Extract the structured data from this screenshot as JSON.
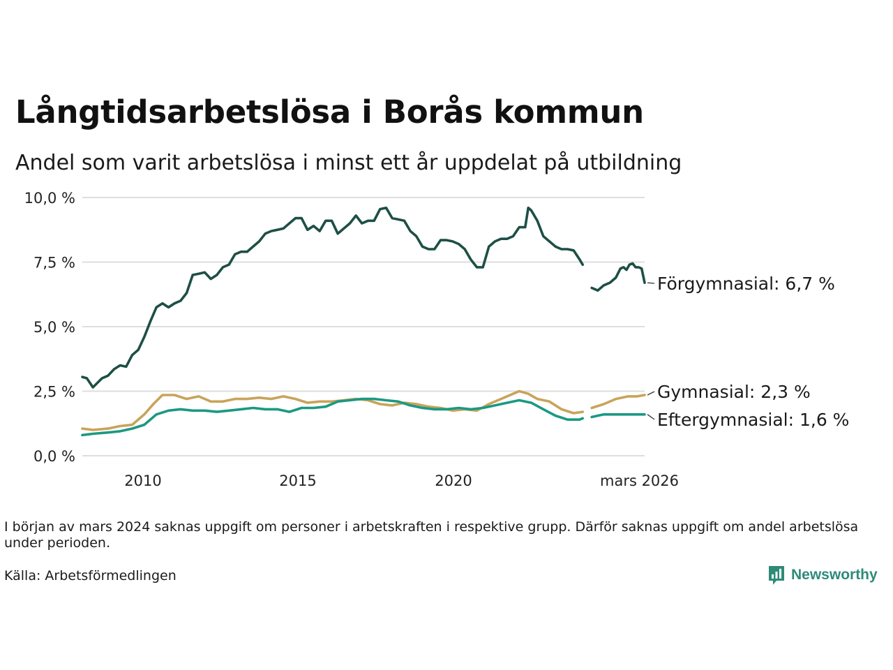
{
  "title": "Långtidsarbetslösa i Borås kommun",
  "subtitle": "Andel som varit arbetslösa i minst ett år uppdelat på utbildning",
  "note": "I början av mars 2024 saknas uppgift om personer i arbetskraften i respektive grupp. Därför saknas uppgift om andel arbetslösa under perioden.",
  "source": "Källa: Arbetsförmedlingen",
  "brand": "Newsworthy",
  "chart_data": {
    "type": "line",
    "title": "Långtidsarbetslösa i Borås kommun",
    "subtitle": "Andel som varit arbetslösa i minst ett år uppdelat på utbildning",
    "ylim": [
      0,
      10
    ],
    "xlim": [
      2008.15,
      2026.17
    ],
    "grid": true,
    "y_ticks": [
      {
        "value": 0,
        "label": "0,0 %"
      },
      {
        "value": 2.5,
        "label": "2,5 %"
      },
      {
        "value": 5,
        "label": "5,0 %"
      },
      {
        "value": 7.5,
        "label": "7,5 %"
      },
      {
        "value": 10,
        "label": "10,0 %"
      }
    ],
    "x_ticks": [
      {
        "value": 2010,
        "label": "2010"
      },
      {
        "value": 2015,
        "label": "2015"
      },
      {
        "value": 2020,
        "label": "2020"
      },
      {
        "value": 2026.17,
        "label": "mars 2026"
      }
    ],
    "series": [
      {
        "name": "Förgymnasial",
        "label": "Förgymnasial: 6,7 %",
        "last_value": 6.7,
        "color": "#1d4f45",
        "segments": [
          [
            [
              2008.15,
              3.05
            ],
            [
              2008.3,
              3.0
            ],
            [
              2008.5,
              2.65
            ],
            [
              2008.8,
              3.0
            ],
            [
              2009.0,
              3.1
            ],
            [
              2009.2,
              3.35
            ],
            [
              2009.4,
              3.5
            ],
            [
              2009.6,
              3.45
            ],
            [
              2009.8,
              3.9
            ],
            [
              2010.0,
              4.1
            ],
            [
              2010.2,
              4.6
            ],
            [
              2010.4,
              5.2
            ],
            [
              2010.6,
              5.75
            ],
            [
              2010.8,
              5.9
            ],
            [
              2011.0,
              5.75
            ],
            [
              2011.2,
              5.9
            ],
            [
              2011.4,
              6.0
            ],
            [
              2011.6,
              6.3
            ],
            [
              2011.8,
              7.0
            ],
            [
              2012.0,
              7.05
            ],
            [
              2012.2,
              7.1
            ],
            [
              2012.4,
              6.85
            ],
            [
              2012.6,
              7.0
            ],
            [
              2012.8,
              7.3
            ],
            [
              2013.0,
              7.4
            ],
            [
              2013.2,
              7.8
            ],
            [
              2013.4,
              7.9
            ],
            [
              2013.6,
              7.9
            ],
            [
              2013.8,
              8.1
            ],
            [
              2014.0,
              8.3
            ],
            [
              2014.2,
              8.6
            ],
            [
              2014.4,
              8.7
            ],
            [
              2014.6,
              8.75
            ],
            [
              2014.8,
              8.8
            ],
            [
              2015.0,
              9.0
            ],
            [
              2015.2,
              9.2
            ],
            [
              2015.4,
              9.2
            ],
            [
              2015.6,
              8.75
            ],
            [
              2015.8,
              8.9
            ],
            [
              2016.0,
              8.7
            ],
            [
              2016.2,
              9.1
            ],
            [
              2016.4,
              9.1
            ],
            [
              2016.6,
              8.6
            ],
            [
              2016.8,
              8.8
            ],
            [
              2017.0,
              9.0
            ],
            [
              2017.2,
              9.3
            ],
            [
              2017.4,
              9.0
            ],
            [
              2017.6,
              9.1
            ],
            [
              2017.8,
              9.1
            ],
            [
              2018.0,
              9.55
            ],
            [
              2018.2,
              9.6
            ],
            [
              2018.4,
              9.2
            ],
            [
              2018.6,
              9.15
            ],
            [
              2018.8,
              9.1
            ],
            [
              2019.0,
              8.7
            ],
            [
              2019.2,
              8.5
            ],
            [
              2019.4,
              8.1
            ],
            [
              2019.6,
              8.0
            ],
            [
              2019.8,
              8.0
            ],
            [
              2020.0,
              8.35
            ],
            [
              2020.2,
              8.35
            ],
            [
              2020.4,
              8.3
            ],
            [
              2020.6,
              8.2
            ],
            [
              2020.8,
              8.0
            ],
            [
              2021.0,
              7.6
            ],
            [
              2021.2,
              7.3
            ],
            [
              2021.4,
              7.3
            ],
            [
              2021.6,
              8.1
            ],
            [
              2021.8,
              8.3
            ],
            [
              2022.0,
              8.4
            ],
            [
              2022.2,
              8.4
            ],
            [
              2022.4,
              8.5
            ],
            [
              2022.6,
              8.85
            ],
            [
              2022.8,
              8.85
            ],
            [
              2022.9,
              9.6
            ],
            [
              2023.0,
              9.5
            ],
            [
              2023.2,
              9.1
            ],
            [
              2023.4,
              8.5
            ],
            [
              2023.6,
              8.3
            ],
            [
              2023.8,
              8.1
            ],
            [
              2024.0,
              8.0
            ],
            [
              2024.2,
              8.0
            ],
            [
              2024.4,
              7.95
            ],
            [
              2024.6,
              7.6
            ],
            [
              2024.7,
              7.4
            ]
          ],
          [
            [
              2025.0,
              6.5
            ],
            [
              2025.2,
              6.4
            ],
            [
              2025.4,
              6.6
            ],
            [
              2025.6,
              6.7
            ],
            [
              2025.8,
              6.9
            ],
            [
              2025.95,
              7.25
            ],
            [
              2026.05,
              7.3
            ],
            [
              2026.15,
              7.2
            ],
            [
              2026.25,
              7.4
            ],
            [
              2026.35,
              7.45
            ],
            [
              2026.45,
              7.3
            ],
            [
              2026.55,
              7.3
            ],
            [
              2026.65,
              7.25
            ],
            [
              2026.75,
              6.7
            ]
          ]
        ]
      },
      {
        "name": "Gymnasial",
        "label": "Gymnasial: 2,3 %",
        "last_value": 2.3,
        "color": "#c9a35a",
        "segments": [
          [
            [
              2008.15,
              1.05
            ],
            [
              2008.5,
              1.0
            ],
            [
              2009.0,
              1.05
            ],
            [
              2009.4,
              1.15
            ],
            [
              2009.8,
              1.2
            ],
            [
              2010.2,
              1.6
            ],
            [
              2010.5,
              2.0
            ],
            [
              2010.8,
              2.35
            ],
            [
              2011.2,
              2.35
            ],
            [
              2011.6,
              2.2
            ],
            [
              2012.0,
              2.3
            ],
            [
              2012.4,
              2.1
            ],
            [
              2012.8,
              2.1
            ],
            [
              2013.2,
              2.2
            ],
            [
              2013.6,
              2.2
            ],
            [
              2014.0,
              2.25
            ],
            [
              2014.4,
              2.2
            ],
            [
              2014.8,
              2.3
            ],
            [
              2015.2,
              2.2
            ],
            [
              2015.6,
              2.05
            ],
            [
              2016.0,
              2.1
            ],
            [
              2016.4,
              2.1
            ],
            [
              2016.8,
              2.15
            ],
            [
              2017.2,
              2.2
            ],
            [
              2017.6,
              2.15
            ],
            [
              2018.0,
              2.0
            ],
            [
              2018.4,
              1.95
            ],
            [
              2018.8,
              2.05
            ],
            [
              2019.2,
              2.0
            ],
            [
              2019.6,
              1.9
            ],
            [
              2020.0,
              1.85
            ],
            [
              2020.4,
              1.75
            ],
            [
              2020.8,
              1.8
            ],
            [
              2021.2,
              1.75
            ],
            [
              2021.6,
              2.0
            ],
            [
              2022.0,
              2.2
            ],
            [
              2022.4,
              2.4
            ],
            [
              2022.6,
              2.5
            ],
            [
              2022.9,
              2.4
            ],
            [
              2023.2,
              2.2
            ],
            [
              2023.6,
              2.1
            ],
            [
              2024.0,
              1.8
            ],
            [
              2024.4,
              1.65
            ],
            [
              2024.7,
              1.7
            ]
          ],
          [
            [
              2025.0,
              1.85
            ],
            [
              2025.4,
              2.0
            ],
            [
              2025.8,
              2.2
            ],
            [
              2026.2,
              2.3
            ],
            [
              2026.5,
              2.3
            ],
            [
              2026.75,
              2.35
            ]
          ]
        ]
      },
      {
        "name": "Eftergymnasial",
        "label": "Eftergymnasial: 1,6 %",
        "last_value": 1.6,
        "color": "#1b9982",
        "segments": [
          [
            [
              2008.15,
              0.8
            ],
            [
              2008.5,
              0.85
            ],
            [
              2009.0,
              0.9
            ],
            [
              2009.4,
              0.95
            ],
            [
              2009.8,
              1.05
            ],
            [
              2010.2,
              1.2
            ],
            [
              2010.6,
              1.6
            ],
            [
              2011.0,
              1.75
            ],
            [
              2011.4,
              1.8
            ],
            [
              2011.8,
              1.75
            ],
            [
              2012.2,
              1.75
            ],
            [
              2012.6,
              1.7
            ],
            [
              2013.0,
              1.75
            ],
            [
              2013.4,
              1.8
            ],
            [
              2013.8,
              1.85
            ],
            [
              2014.2,
              1.8
            ],
            [
              2014.6,
              1.8
            ],
            [
              2015.0,
              1.7
            ],
            [
              2015.4,
              1.85
            ],
            [
              2015.8,
              1.85
            ],
            [
              2016.2,
              1.9
            ],
            [
              2016.6,
              2.1
            ],
            [
              2017.0,
              2.15
            ],
            [
              2017.4,
              2.2
            ],
            [
              2017.8,
              2.2
            ],
            [
              2018.2,
              2.15
            ],
            [
              2018.6,
              2.1
            ],
            [
              2019.0,
              1.95
            ],
            [
              2019.4,
              1.85
            ],
            [
              2019.8,
              1.8
            ],
            [
              2020.2,
              1.8
            ],
            [
              2020.6,
              1.85
            ],
            [
              2021.0,
              1.8
            ],
            [
              2021.4,
              1.85
            ],
            [
              2021.8,
              1.95
            ],
            [
              2022.2,
              2.05
            ],
            [
              2022.6,
              2.15
            ],
            [
              2023.0,
              2.05
            ],
            [
              2023.4,
              1.8
            ],
            [
              2023.8,
              1.55
            ],
            [
              2024.2,
              1.4
            ],
            [
              2024.6,
              1.4
            ],
            [
              2024.7,
              1.45
            ]
          ],
          [
            [
              2025.0,
              1.5
            ],
            [
              2025.4,
              1.6
            ],
            [
              2025.8,
              1.6
            ],
            [
              2026.2,
              1.6
            ],
            [
              2026.5,
              1.6
            ],
            [
              2026.75,
              1.6
            ]
          ]
        ]
      }
    ]
  }
}
